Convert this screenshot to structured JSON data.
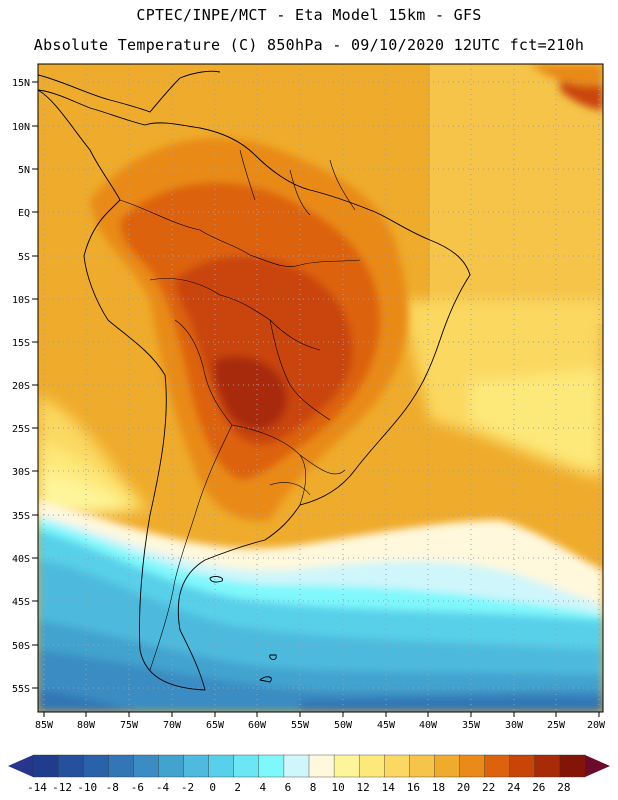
{
  "header": {
    "line1": "CPTEC/INPE/MCT  -   Eta Model 15km  -  GFS",
    "line2": "Absolute Temperature (C) 850hPa - 09/10/2020 12UTC fct=210h"
  },
  "map": {
    "lat_labels": [
      "15N",
      "10N",
      "5N",
      "EQ",
      "5S",
      "10S",
      "15S",
      "20S",
      "25S",
      "30S",
      "35S",
      "40S",
      "45S",
      "50S",
      "55S"
    ],
    "lon_labels": [
      "85W",
      "80W",
      "75W",
      "70W",
      "65W",
      "60W",
      "55W",
      "50W",
      "45W",
      "40W",
      "35W",
      "30W",
      "25W",
      "20W"
    ]
  },
  "colorbar": {
    "labels": [
      "-14",
      "-12",
      "-10",
      "-8",
      "-6",
      "-4",
      "-2",
      "0",
      "2",
      "4",
      "6",
      "8",
      "10",
      "12",
      "14",
      "16",
      "18",
      "20",
      "22",
      "24",
      "26",
      "28"
    ],
    "colors": [
      "#1f3d8c",
      "#24509c",
      "#2a62aa",
      "#3276b5",
      "#3a8cc2",
      "#42a3cf",
      "#4ebadd",
      "#58d0ea",
      "#6ae6f4",
      "#7ff8fc",
      "#cff6fb",
      "#fff8dc",
      "#fef59a",
      "#fde97a",
      "#fbd861",
      "#f5c449",
      "#efab2b",
      "#e98a19",
      "#dd620e",
      "#c94409",
      "#a82b08",
      "#821508"
    ],
    "under_color": "#27358a",
    "over_color": "#6b0a2a"
  },
  "colors": {
    "frame": "#000000",
    "grid": "#9aa0b0",
    "coast": "#000000"
  }
}
